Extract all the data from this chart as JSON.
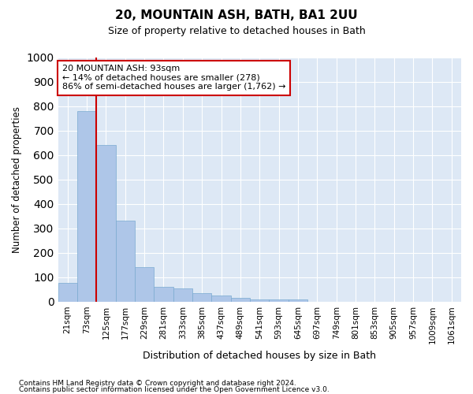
{
  "title": "20, MOUNTAIN ASH, BATH, BA1 2UU",
  "subtitle": "Size of property relative to detached houses in Bath",
  "xlabel": "Distribution of detached houses by size in Bath",
  "ylabel": "Number of detached properties",
  "bin_labels": [
    "21sqm",
    "73sqm",
    "125sqm",
    "177sqm",
    "229sqm",
    "281sqm",
    "333sqm",
    "385sqm",
    "437sqm",
    "489sqm",
    "541sqm",
    "593sqm",
    "645sqm",
    "697sqm",
    "749sqm",
    "801sqm",
    "853sqm",
    "905sqm",
    "957sqm",
    "1009sqm",
    "1061sqm"
  ],
  "bar_heights": [
    75,
    780,
    640,
    330,
    140,
    60,
    55,
    35,
    25,
    15,
    10,
    10,
    8,
    0,
    0,
    0,
    0,
    0,
    0,
    0,
    0
  ],
  "bar_color": "#aec6e8",
  "bar_edge_color": "#7aaad0",
  "vline_x": 1.5,
  "vline_color": "#cc0000",
  "annotation_text": "20 MOUNTAIN ASH: 93sqm\n← 14% of detached houses are smaller (278)\n86% of semi-detached houses are larger (1,762) →",
  "annotation_box_color": "#ffffff",
  "annotation_box_edge": "#cc0000",
  "ylim": [
    0,
    1000
  ],
  "yticks": [
    0,
    100,
    200,
    300,
    400,
    500,
    600,
    700,
    800,
    900,
    1000
  ],
  "bg_color": "#dde8f5",
  "footer1": "Contains HM Land Registry data © Crown copyright and database right 2024.",
  "footer2": "Contains public sector information licensed under the Open Government Licence v3.0."
}
